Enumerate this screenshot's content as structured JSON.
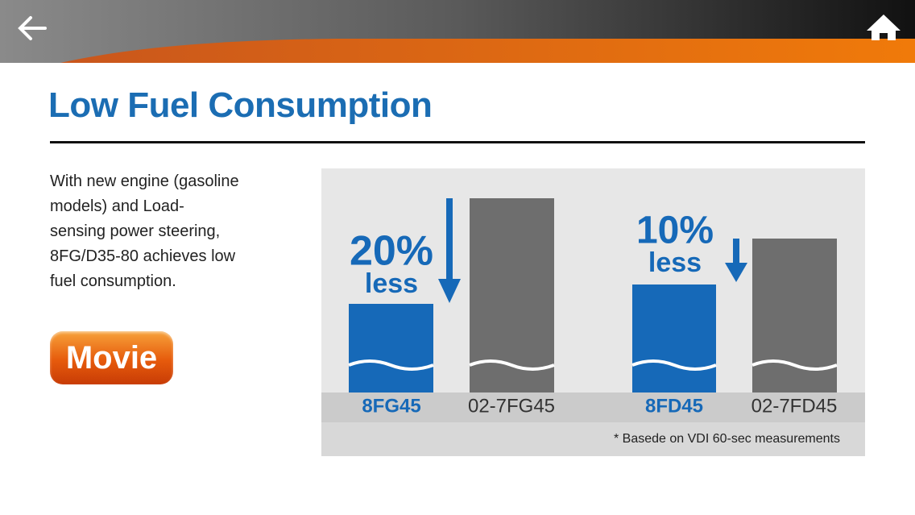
{
  "title": "Low Fuel Consumption",
  "description": "With new engine (gasoline models) and Load-sensing power steering, 8FG/D35-80 achieves low fuel consumption.",
  "movie_button": "Movie",
  "comparisons": [
    {
      "reduction": "20%",
      "reduction_word": "less",
      "new_model": "8FG45",
      "old_model": "02-7FG45"
    },
    {
      "reduction": "10%",
      "reduction_word": "less",
      "new_model": "8FD45",
      "old_model": "02-7FD45"
    }
  ],
  "footnote": "* Basede on VDI 60-sec measurements"
}
